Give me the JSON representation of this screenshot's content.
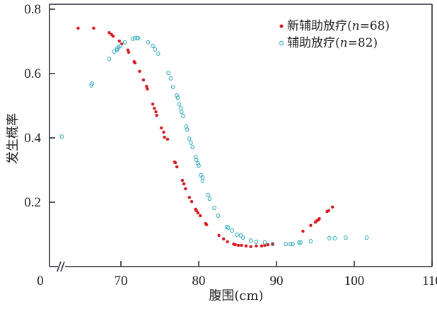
{
  "chart_data": {
    "type": "scatter",
    "xlabel": "腹围(cm)",
    "ylabel": "发生概率",
    "xlim": [
      60.8,
      110
    ],
    "ylim": [
      0,
      0.8
    ],
    "x_axis_break": true,
    "origin_label": "0",
    "x_ticks": [
      70,
      80,
      90,
      100,
      110
    ],
    "x_tick_labels": [
      "70",
      "80",
      "90",
      "100",
      "110"
    ],
    "y_ticks": [
      0.2,
      0.4,
      0.6,
      0.8
    ],
    "y_tick_labels": [
      "0.2",
      "0.4",
      "0.6",
      "0.8"
    ],
    "grid": false,
    "legend_position": "top-right",
    "series": [
      {
        "name": "新辅助放疗(n=68)",
        "legend_prefix": "新辅助放疗(",
        "legend_italic": "n",
        "legend_suffix": "=68)",
        "marker": "filled-dot",
        "color": "#e8141c",
        "points": [
          [
            64.5,
            0.741
          ],
          [
            66.5,
            0.741
          ],
          [
            68.5,
            0.727
          ],
          [
            68.8,
            0.721
          ],
          [
            69.0,
            0.716
          ],
          [
            69.8,
            0.701
          ],
          [
            70.1,
            0.692
          ],
          [
            70.9,
            0.673
          ],
          [
            71.0,
            0.666
          ],
          [
            71.7,
            0.637
          ],
          [
            71.8,
            0.633
          ],
          [
            72.4,
            0.607
          ],
          [
            72.9,
            0.58
          ],
          [
            73.3,
            0.56
          ],
          [
            73.4,
            0.552
          ],
          [
            74.1,
            0.505
          ],
          [
            74.3,
            0.492
          ],
          [
            74.5,
            0.481
          ],
          [
            74.6,
            0.47
          ],
          [
            75.2,
            0.431
          ],
          [
            75.5,
            0.418
          ],
          [
            75.6,
            0.402
          ],
          [
            76.0,
            0.396
          ],
          [
            76.9,
            0.325
          ],
          [
            77.0,
            0.323
          ],
          [
            77.2,
            0.31
          ],
          [
            77.9,
            0.268
          ],
          [
            78.1,
            0.257
          ],
          [
            78.3,
            0.242
          ],
          [
            78.8,
            0.215
          ],
          [
            79.1,
            0.202
          ],
          [
            79.6,
            0.178
          ],
          [
            79.7,
            0.174
          ],
          [
            79.9,
            0.167
          ],
          [
            80.2,
            0.158
          ],
          [
            80.9,
            0.134
          ],
          [
            81.0,
            0.13
          ],
          [
            82.6,
            0.097
          ],
          [
            83.2,
            0.086
          ],
          [
            83.7,
            0.077
          ],
          [
            84.5,
            0.07
          ],
          [
            84.7,
            0.068
          ],
          [
            85.1,
            0.066
          ],
          [
            85.5,
            0.066
          ],
          [
            86.1,
            0.064
          ],
          [
            86.7,
            0.062
          ],
          [
            87.4,
            0.064
          ],
          [
            88.1,
            0.064
          ],
          [
            88.5,
            0.066
          ],
          [
            88.9,
            0.068
          ],
          [
            89.5,
            0.07
          ],
          [
            93.4,
            0.11
          ],
          [
            94.4,
            0.128
          ],
          [
            95.0,
            0.138
          ],
          [
            95.2,
            0.143
          ],
          [
            95.4,
            0.145
          ],
          [
            95.5,
            0.149
          ],
          [
            96.5,
            0.171
          ],
          [
            96.7,
            0.174
          ],
          [
            97.2,
            0.185
          ]
        ]
      },
      {
        "name": "辅助放疗(n=82)",
        "legend_prefix": "辅助放疗(",
        "legend_italic": "n",
        "legend_suffix": "=82)",
        "marker": "open-circle",
        "color": "#3ab5c9",
        "points": [
          [
            62.4,
            0.404
          ],
          [
            66.2,
            0.563
          ],
          [
            66.3,
            0.569
          ],
          [
            68.5,
            0.646
          ],
          [
            69.1,
            0.668
          ],
          [
            69.5,
            0.673
          ],
          [
            69.5,
            0.677
          ],
          [
            69.7,
            0.681
          ],
          [
            69.9,
            0.686
          ],
          [
            70.5,
            0.697
          ],
          [
            71.5,
            0.708
          ],
          [
            71.8,
            0.71
          ],
          [
            72.1,
            0.71
          ],
          [
            72.2,
            0.71
          ],
          [
            73.5,
            0.697
          ],
          [
            74.1,
            0.686
          ],
          [
            74.4,
            0.675
          ],
          [
            74.8,
            0.662
          ],
          [
            76.1,
            0.602
          ],
          [
            76.4,
            0.585
          ],
          [
            76.7,
            0.558
          ],
          [
            77.2,
            0.532
          ],
          [
            77.3,
            0.525
          ],
          [
            77.5,
            0.505
          ],
          [
            77.7,
            0.492
          ],
          [
            77.8,
            0.481
          ],
          [
            78.0,
            0.468
          ],
          [
            78.4,
            0.435
          ],
          [
            78.5,
            0.426
          ],
          [
            78.8,
            0.398
          ],
          [
            79.0,
            0.385
          ],
          [
            79.2,
            0.371
          ],
          [
            79.6,
            0.341
          ],
          [
            79.7,
            0.332
          ],
          [
            79.9,
            0.321
          ],
          [
            80.0,
            0.314
          ],
          [
            80.3,
            0.284
          ],
          [
            80.5,
            0.277
          ],
          [
            80.5,
            0.266
          ],
          [
            81.2,
            0.222
          ],
          [
            81.4,
            0.211
          ],
          [
            82.0,
            0.182
          ],
          [
            82.5,
            0.158
          ],
          [
            83.6,
            0.123
          ],
          [
            83.8,
            0.121
          ],
          [
            84.3,
            0.112
          ],
          [
            84.9,
            0.099
          ],
          [
            85.4,
            0.097
          ],
          [
            85.7,
            0.09
          ],
          [
            86.7,
            0.081
          ],
          [
            87.4,
            0.077
          ],
          [
            88.5,
            0.075
          ],
          [
            89.5,
            0.07
          ],
          [
            91.2,
            0.07
          ],
          [
            91.8,
            0.07
          ],
          [
            92.1,
            0.07
          ],
          [
            92.9,
            0.075
          ],
          [
            93.1,
            0.075
          ],
          [
            94.4,
            0.079
          ],
          [
            96.8,
            0.088
          ],
          [
            97.5,
            0.088
          ],
          [
            98.9,
            0.09
          ],
          [
            101.6,
            0.09
          ]
        ]
      }
    ]
  }
}
